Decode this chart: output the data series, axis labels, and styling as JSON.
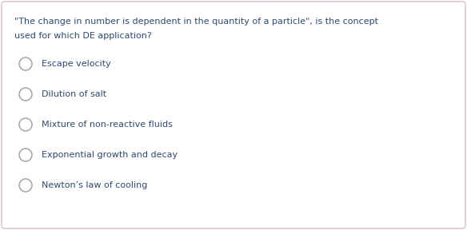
{
  "question_line1": "\"The change in number is dependent in the quantity of a particle\", is the concept",
  "question_line2": "used for which DE application?",
  "options": [
    "Escape velocity",
    "Dilution of salt",
    "Mixture of non-reactive fluids",
    "Exponential growth and decay",
    "Newton’s law of cooling"
  ],
  "background_color": "#ffffff",
  "border_color": "#ddc8c8",
  "question_color": "#2e4a6e",
  "option_color": "#2e4a6e",
  "circle_edge_color": "#aaaaaa",
  "fig_width": 5.84,
  "fig_height": 2.88,
  "dpi": 100
}
